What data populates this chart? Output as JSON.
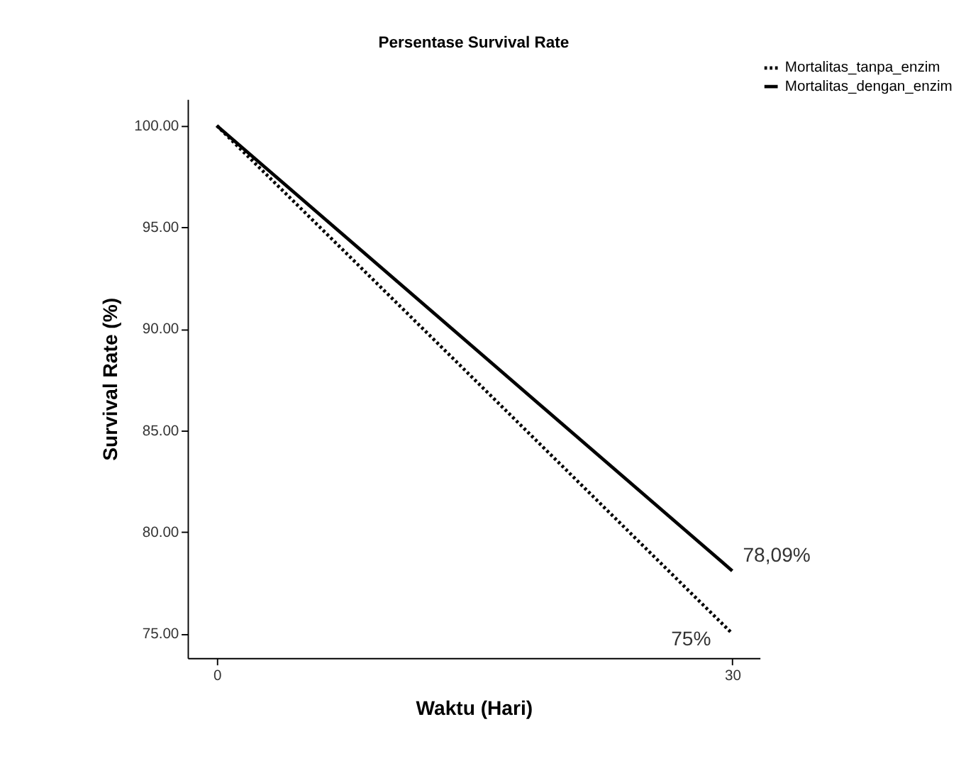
{
  "chart_data": {
    "type": "line",
    "title": "Persentase Survival Rate",
    "xlabel": "Waktu (Hari)",
    "ylabel": "Survival Rate (%)",
    "x": [
      0,
      30
    ],
    "series": [
      {
        "name": "Mortalitas_tanpa_enzim",
        "color": "#000000",
        "line_style": "dotted",
        "values": [
          100,
          75
        ],
        "value_labels": [
          null,
          "75%"
        ]
      },
      {
        "name": "Mortalitas_dengan_enzim",
        "color": "#000000",
        "line_style": "solid",
        "values": [
          100,
          78.09
        ],
        "value_labels": [
          null,
          "78,09%"
        ]
      }
    ],
    "xlim": [
      -1.7,
      31.6
    ],
    "xticks": [
      0,
      30
    ],
    "ylim": [
      73.8,
      101.3
    ],
    "yticks": [
      {
        "value": 75,
        "label": "75.00"
      },
      {
        "value": 80,
        "label": "80.00"
      },
      {
        "value": 85,
        "label": "85.00"
      },
      {
        "value": 90,
        "label": "90.00"
      },
      {
        "value": 95,
        "label": "95.00"
      },
      {
        "value": 100,
        "label": "100.00"
      }
    ],
    "grid": false,
    "legend": "top right",
    "marker": "none"
  }
}
